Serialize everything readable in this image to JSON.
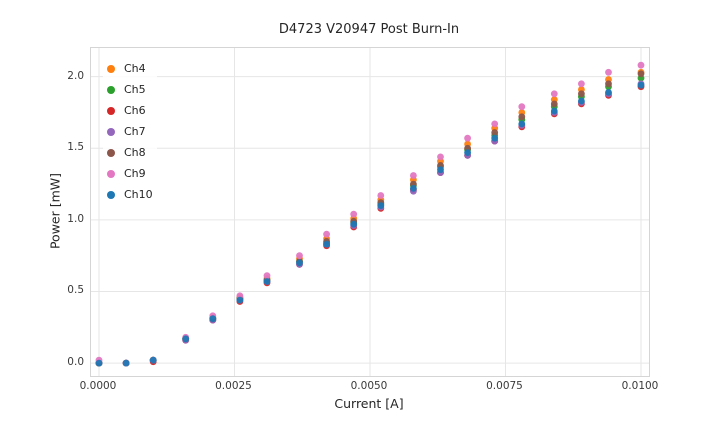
{
  "chart_data": {
    "type": "scatter",
    "title": "D4723 V20947 Post Burn-In",
    "xlabel": "Current [A]",
    "ylabel": "Power [mW]",
    "xlim": [
      0.0,
      0.01
    ],
    "ylim": [
      -0.09,
      2.2
    ],
    "grid": true,
    "grid_color": "#e6e6e6",
    "axes_border_color": "#d5d5d5",
    "legend_position": "upper-left",
    "x_ticks": [
      0.0,
      0.0025,
      0.005,
      0.0075,
      0.01
    ],
    "x_tick_labels": [
      "0.0000",
      "0.0025",
      "0.0050",
      "0.0075",
      "0.0100"
    ],
    "y_ticks": [
      0.0,
      0.5,
      1.0,
      1.5,
      2.0
    ],
    "y_tick_labels": [
      "0.0",
      "0.5",
      "1.0",
      "1.5",
      "2.0"
    ],
    "x": [
      0.0,
      0.0005,
      0.001,
      0.0016,
      0.0021,
      0.0026,
      0.0031,
      0.0037,
      0.0042,
      0.0047,
      0.0052,
      0.0058,
      0.0063,
      0.0068,
      0.0073,
      0.0078,
      0.0084,
      0.0089,
      0.0094,
      0.01
    ],
    "series": [
      {
        "name": "Ch4",
        "color": "#ff7f0e",
        "values": [
          0.0,
          0.0,
          0.02,
          0.17,
          0.32,
          0.46,
          0.59,
          0.73,
          0.87,
          1.01,
          1.14,
          1.28,
          1.41,
          1.53,
          1.64,
          1.75,
          1.84,
          1.91,
          1.98,
          2.03
        ]
      },
      {
        "name": "Ch5",
        "color": "#2ca02c",
        "values": [
          0.0,
          0.0,
          0.02,
          0.17,
          0.31,
          0.45,
          0.58,
          0.71,
          0.84,
          0.98,
          1.11,
          1.24,
          1.37,
          1.49,
          1.59,
          1.7,
          1.79,
          1.86,
          1.93,
          1.99
        ]
      },
      {
        "name": "Ch6",
        "color": "#d62728",
        "values": [
          0.0,
          0.0,
          0.01,
          0.16,
          0.3,
          0.43,
          0.56,
          0.69,
          0.82,
          0.95,
          1.08,
          1.21,
          1.33,
          1.45,
          1.55,
          1.65,
          1.74,
          1.81,
          1.87,
          1.93
        ]
      },
      {
        "name": "Ch7",
        "color": "#9467bd",
        "values": [
          0.0,
          0.0,
          0.02,
          0.16,
          0.3,
          0.44,
          0.57,
          0.69,
          0.83,
          0.96,
          1.09,
          1.2,
          1.33,
          1.45,
          1.55,
          1.66,
          1.75,
          1.82,
          1.88,
          1.95
        ]
      },
      {
        "name": "Ch8",
        "color": "#8c564b",
        "values": [
          0.0,
          0.0,
          0.02,
          0.17,
          0.31,
          0.45,
          0.58,
          0.71,
          0.85,
          0.99,
          1.12,
          1.25,
          1.38,
          1.5,
          1.61,
          1.72,
          1.81,
          1.88,
          1.95,
          2.02
        ]
      },
      {
        "name": "Ch9",
        "color": "#e377c2",
        "values": [
          0.02,
          0.0,
          0.02,
          0.18,
          0.33,
          0.47,
          0.61,
          0.75,
          0.9,
          1.04,
          1.17,
          1.31,
          1.44,
          1.57,
          1.67,
          1.79,
          1.88,
          1.95,
          2.03,
          2.08
        ]
      },
      {
        "name": "Ch10",
        "color": "#1f77b4",
        "values": [
          0.0,
          0.0,
          0.02,
          0.17,
          0.31,
          0.44,
          0.57,
          0.7,
          0.83,
          0.97,
          1.1,
          1.22,
          1.35,
          1.47,
          1.57,
          1.67,
          1.76,
          1.83,
          1.89,
          1.94
        ]
      }
    ]
  }
}
